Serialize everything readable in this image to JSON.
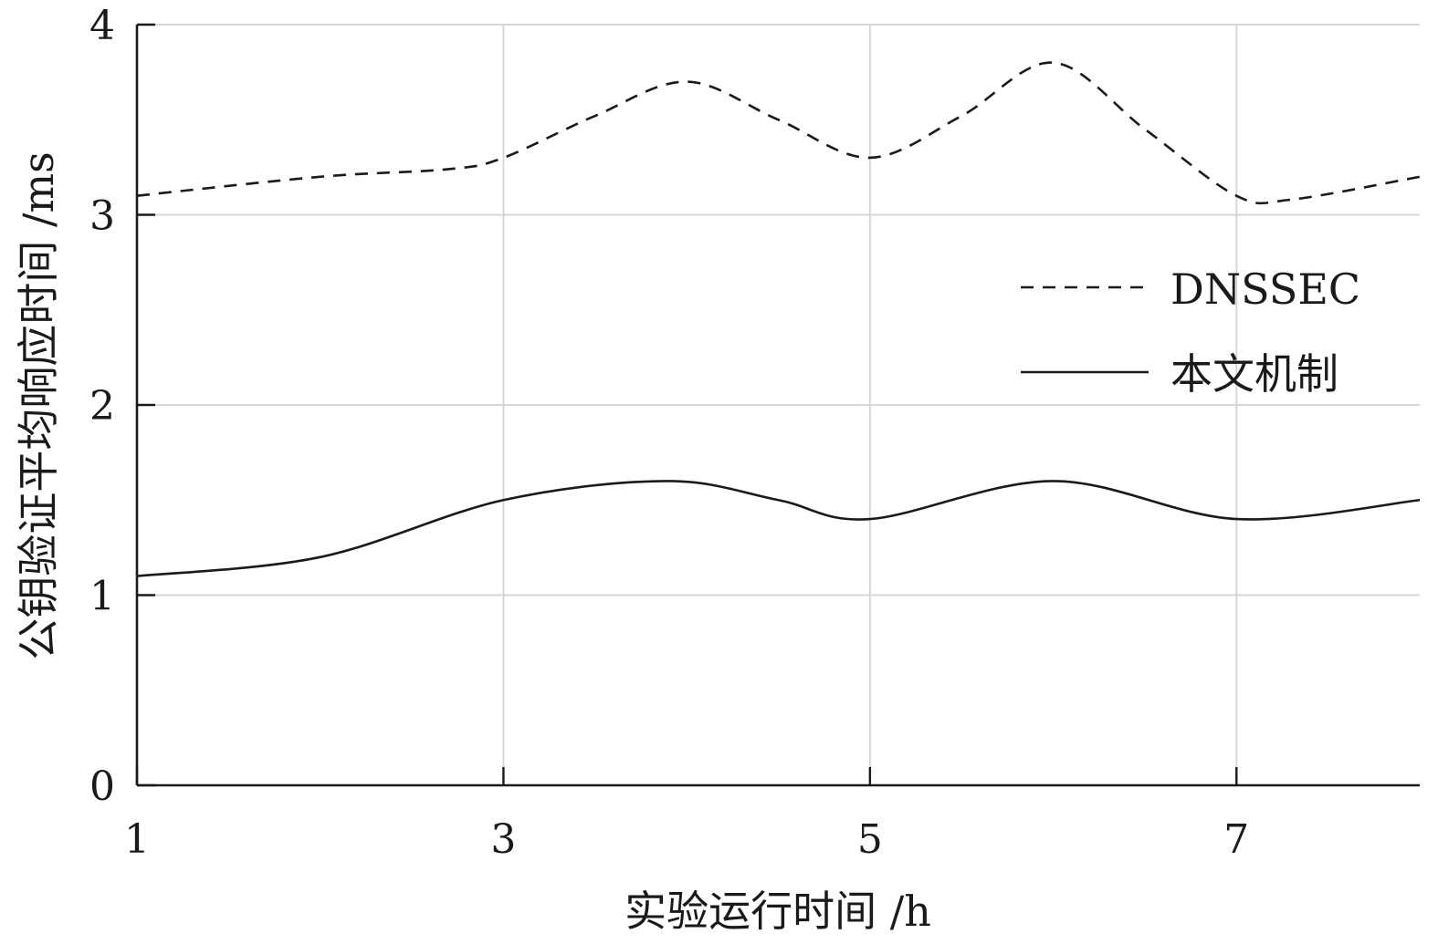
{
  "chart_data": {
    "type": "line",
    "xlabel": "实验运行时间 /h",
    "ylabel": "公钥验证平均响应时间 /ms",
    "xlim": [
      1,
      8
    ],
    "ylim": [
      0,
      4
    ],
    "x_ticks": [
      1,
      3,
      5,
      7
    ],
    "y_ticks": [
      0,
      1,
      2,
      3,
      4
    ],
    "x_tick_labels": [
      "1",
      "3",
      "5",
      "7"
    ],
    "y_tick_labels": [
      "0",
      "1",
      "2",
      "3",
      "4"
    ],
    "grid": true,
    "legend_position": "right",
    "series": [
      {
        "name": "DNSSEC",
        "style": "dashed",
        "color": "#1a1a1a",
        "x": [
          1,
          2,
          2.7,
          3,
          3.5,
          4,
          4.5,
          5,
          5.5,
          6,
          6.5,
          7,
          7.3,
          8
        ],
        "y": [
          3.1,
          3.2,
          3.24,
          3.3,
          3.52,
          3.7,
          3.5,
          3.3,
          3.52,
          3.8,
          3.45,
          3.1,
          3.08,
          3.2
        ]
      },
      {
        "name": "本文机制",
        "style": "solid",
        "color": "#1a1a1a",
        "x": [
          1,
          2,
          3,
          3.9,
          4.5,
          5,
          6,
          7,
          8
        ],
        "y": [
          1.1,
          1.2,
          1.5,
          1.6,
          1.5,
          1.4,
          1.6,
          1.4,
          1.5
        ]
      }
    ]
  }
}
